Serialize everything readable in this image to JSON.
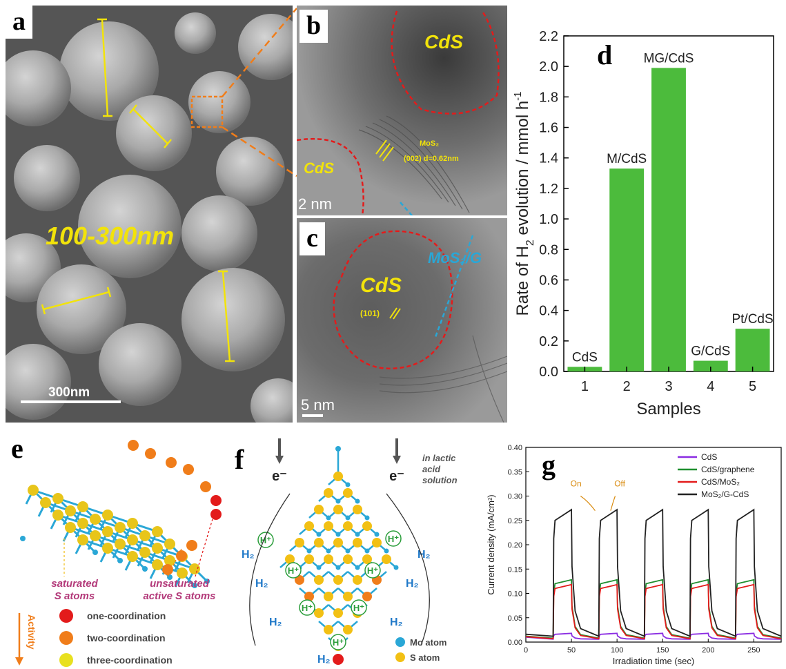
{
  "panels": {
    "a": {
      "letter": "a",
      "size_label": "100-300nm",
      "scale_label": "300nm"
    },
    "b": {
      "letter": "b",
      "cds_label_top": "CdS",
      "cds_label_left": "CdS",
      "mos2_label_line1": "MoS₂",
      "mos2_label_line2": "(002) d=0.62nm",
      "scale_label": "2 nm"
    },
    "c": {
      "letter": "c",
      "cds_label": "CdS",
      "plane_label": "(101)",
      "mos2g_label": "MoS₂/G",
      "scale_label": "5 nm"
    },
    "e": {
      "letter": "e",
      "saturated_label_line1": "saturated",
      "saturated_label_line2": "S atoms",
      "unsaturated_label_line1": "unsaturated",
      "unsaturated_label_line2": "active S atoms",
      "activity_label": "Activity",
      "legend": [
        {
          "label": "one-coordination",
          "color": "#e31b1b"
        },
        {
          "label": "two-coordination",
          "color": "#f07d1a"
        },
        {
          "label": "three-coordination",
          "color": "#e8e020"
        }
      ]
    },
    "f": {
      "letter": "f",
      "electron_label": "e⁻",
      "solution_label_line1": "in lactic",
      "solution_label_line2": "acid",
      "solution_label_line3": "solution",
      "proton_label": "H⁺",
      "h2_label": "H₂",
      "legend": [
        {
          "label": "Mo atom",
          "color": "#2aa7d6"
        },
        {
          "label": "S atom",
          "color": "#f2c014"
        }
      ]
    }
  },
  "chart_data": [
    {
      "panel": "d",
      "letter": "d",
      "type": "bar",
      "categories": [
        "1",
        "2",
        "3",
        "4",
        "5"
      ],
      "bar_labels": [
        "CdS",
        "M/CdS",
        "MG/CdS",
        "G/CdS",
        "Pt/CdS"
      ],
      "values": [
        0.03,
        1.33,
        1.99,
        0.07,
        0.28
      ],
      "xlabel": "Samples",
      "ylabel_main": "Rate of H",
      "ylabel_sub": "2",
      "ylabel_rest": " evolution / mmol h",
      "ylabel_sup": "-1",
      "ylim": [
        0,
        2.2
      ],
      "yticks": [
        "0.0",
        "0.2",
        "0.4",
        "0.6",
        "0.8",
        "1.0",
        "1.2",
        "1.4",
        "1.6",
        "1.8",
        "2.0",
        "2.2"
      ],
      "bar_color": "#4cbb3c",
      "grid": false
    },
    {
      "panel": "g",
      "letter": "g",
      "type": "line",
      "xlabel": "Irradiation time (sec)",
      "ylabel": "Current density (mA/cm²)",
      "xlim": [
        0,
        280
      ],
      "ylim": [
        0,
        0.4
      ],
      "xticks": [
        "0",
        "50",
        "100",
        "150",
        "200",
        "250"
      ],
      "yticks": [
        "0.00",
        "0.05",
        "0.10",
        "0.15",
        "0.20",
        "0.25",
        "0.30",
        "0.35",
        "0.40"
      ],
      "on_label": "On",
      "off_label": "Off",
      "light_on_periods": [
        [
          30,
          50
        ],
        [
          80,
          100
        ],
        [
          130,
          150
        ],
        [
          180,
          200
        ],
        [
          230,
          250
        ]
      ],
      "series": [
        {
          "name": "CdS",
          "color": "#8a2be2",
          "baseline": 0.006,
          "plateau_start": 0.016,
          "plateau_end": 0.018
        },
        {
          "name": "CdS/graphene",
          "color": "#1f8f2f",
          "baseline": 0.008,
          "plateau_start": 0.12,
          "plateau_end": 0.128
        },
        {
          "name": "CdS/MoS₂",
          "color": "#e31b1b",
          "baseline": 0.007,
          "plateau_start": 0.11,
          "plateau_end": 0.118
        },
        {
          "name": "MoS₂/G-CdS",
          "color": "#222222",
          "baseline": 0.012,
          "plateau_start": 0.25,
          "plateau_end": 0.272
        }
      ]
    }
  ]
}
